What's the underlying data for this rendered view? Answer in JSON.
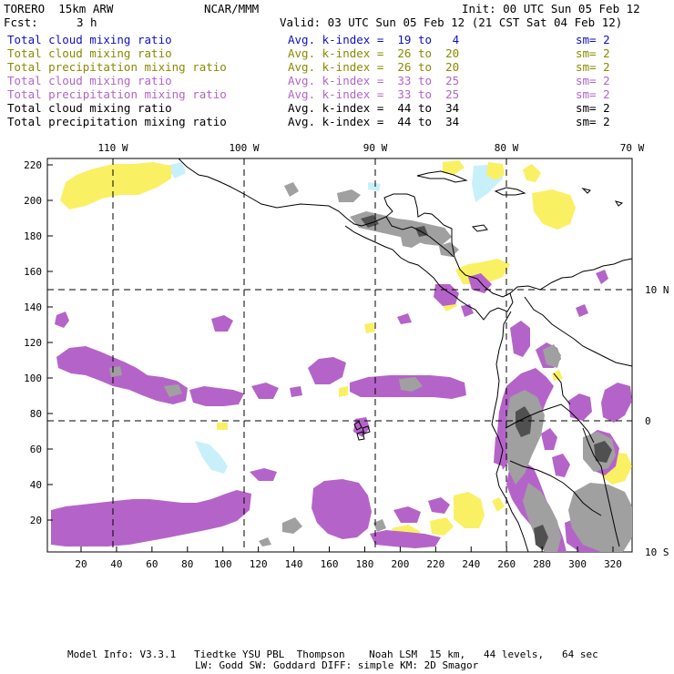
{
  "header": {
    "model": "TORERO  15km ARW",
    "org": "NCAR/MMM",
    "init": "Init: 00 UTC Sun 05 Feb 12",
    "fcst_label": "Fcst:",
    "fcst_value": "3 h",
    "valid": "Valid: 03 UTC Sun 05 Feb 12 (21 CST Sat 04 Feb 12)"
  },
  "legend": [
    {
      "field": "Total cloud mixing ratio",
      "kindex": "Avg. k-index =  19 to   4",
      "sm": "sm= 2",
      "color": "#1010c8"
    },
    {
      "field": "Total cloud mixing ratio",
      "kindex": "Avg. k-index =  26 to  20",
      "sm": "sm= 2",
      "color": "#8a8a00"
    },
    {
      "field": "Total precipitation mixing ratio",
      "kindex": "Avg. k-index =  26 to  20",
      "sm": "sm= 2",
      "color": "#8a8a00"
    },
    {
      "field": "Total cloud mixing ratio",
      "kindex": "Avg. k-index =  33 to  25",
      "sm": "sm= 2",
      "color": "#b464c8"
    },
    {
      "field": "Total precipitation mixing ratio",
      "kindex": "Avg. k-index =  33 to  25",
      "sm": "sm= 2",
      "color": "#b464c8"
    },
    {
      "field": "Total cloud mixing ratio",
      "kindex": "Avg. k-index =  44 to  34",
      "sm": "sm= 2",
      "color": "#000000"
    },
    {
      "field": "Total precipitation mixing ratio",
      "kindex": "Avg. k-index =  44 to  34",
      "sm": "sm= 2",
      "color": "#000000"
    }
  ],
  "axes": {
    "lon_labels": [
      "110 W",
      "100 W",
      "90 W",
      "80 W",
      "70 W"
    ],
    "lat_labels": [
      "10 N",
      "0",
      "10 S"
    ],
    "x_ticks": [
      "20",
      "40",
      "60",
      "80",
      "100",
      "120",
      "140",
      "160",
      "180",
      "200",
      "220",
      "240",
      "260",
      "280",
      "300",
      "320"
    ],
    "y_ticks": [
      "220",
      "200",
      "180",
      "160",
      "140",
      "120",
      "100",
      "80",
      "60",
      "40",
      "20"
    ]
  },
  "footer": {
    "line1": "Model Info: V3.3.1   Tiedtke YSU PBL  Thompson    Noah LSM  15 km,   44 levels,   64 sec",
    "line2": "LW: Godd SW: Goddard DIFF: simple KM: 2D Smagor"
  },
  "colors": {
    "light_blue": "#c8f0fa",
    "yellow": "#faf064",
    "purple": "#b464c8",
    "gray": "#a0a0a0",
    "dark_gray": "#505050"
  }
}
